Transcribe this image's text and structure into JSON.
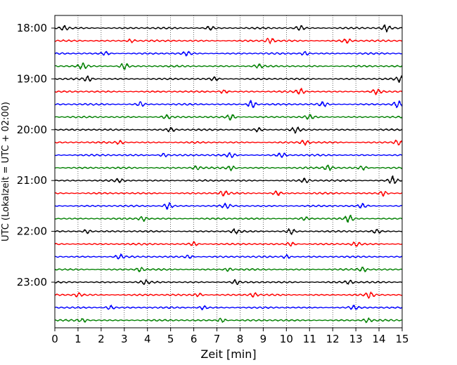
{
  "chart_data": {
    "type": "line",
    "title": "",
    "xlabel": "Zeit  [min]",
    "ylabel": "UTC (Lokalzeit = UTC + 02:00)",
    "xlim": [
      0,
      15
    ],
    "x_ticks": [
      "0",
      "1",
      "2",
      "3",
      "4",
      "5",
      "6",
      "7",
      "8",
      "9",
      "10",
      "11",
      "12",
      "13",
      "14",
      "15"
    ],
    "y_ticks": [
      "18:00",
      "19:00",
      "20:00",
      "21:00",
      "22:00",
      "23:00"
    ],
    "trace_interval_minutes": 15,
    "start_time": "18:00",
    "trace_count": 24,
    "colors": [
      "#000000",
      "#ff0000",
      "#0000ff",
      "#008000"
    ],
    "grid": "vertical dotted at each minute",
    "bursts": [
      [
        [
          0.4,
          1.0
        ],
        [
          6.7,
          0.9
        ],
        [
          10.6,
          1.2
        ],
        [
          14.3,
          1.6
        ]
      ],
      [
        [
          3.3,
          0.8
        ],
        [
          9.3,
          1.4
        ],
        [
          12.6,
          1.0
        ]
      ],
      [
        [
          2.2,
          0.8
        ],
        [
          5.7,
          0.8
        ],
        [
          10.8,
          0.9
        ]
      ],
      [
        [
          1.2,
          1.3
        ],
        [
          3.0,
          1.4
        ],
        [
          8.8,
          0.9
        ]
      ],
      [
        [
          1.4,
          1.3
        ],
        [
          6.9,
          0.8
        ],
        [
          14.9,
          1.3
        ]
      ],
      [
        [
          7.3,
          0.9
        ],
        [
          10.6,
          1.3
        ],
        [
          13.9,
          1.2
        ]
      ],
      [
        [
          3.7,
          1.0
        ],
        [
          8.5,
          1.7
        ],
        [
          11.6,
          1.0
        ],
        [
          14.8,
          1.5
        ]
      ],
      [
        [
          4.8,
          0.9
        ],
        [
          7.6,
          1.4
        ],
        [
          11.0,
          1.0
        ]
      ],
      [
        [
          5.0,
          1.0
        ],
        [
          8.8,
          0.9
        ],
        [
          10.4,
          1.2
        ]
      ],
      [
        [
          2.8,
          0.8
        ],
        [
          10.8,
          1.1
        ],
        [
          14.8,
          1.1
        ]
      ],
      [
        [
          4.7,
          0.9
        ],
        [
          7.6,
          1.1
        ],
        [
          9.8,
          1.1
        ]
      ],
      [
        [
          6.1,
          0.8
        ],
        [
          7.6,
          1.1
        ],
        [
          11.8,
          1.3
        ],
        [
          13.3,
          1.0
        ]
      ],
      [
        [
          2.8,
          0.8
        ],
        [
          10.8,
          1.0
        ],
        [
          14.6,
          1.9
        ]
      ],
      [
        [
          7.3,
          1.1
        ],
        [
          9.6,
          1.1
        ],
        [
          14.2,
          1.2
        ]
      ],
      [
        [
          4.9,
          1.6
        ],
        [
          7.4,
          0.9
        ],
        [
          13.3,
          1.1
        ]
      ],
      [
        [
          3.8,
          1.1
        ],
        [
          10.8,
          0.9
        ],
        [
          12.7,
          1.5
        ]
      ],
      [
        [
          1.4,
          1.0
        ],
        [
          7.8,
          1.0
        ],
        [
          10.2,
          1.3
        ],
        [
          13.9,
          1.0
        ]
      ],
      [
        [
          6.0,
          0.9
        ],
        [
          10.2,
          1.0
        ],
        [
          13.0,
          1.0
        ]
      ],
      [
        [
          2.8,
          1.1
        ],
        [
          5.8,
          0.9
        ],
        [
          10.0,
          1.0
        ]
      ],
      [
        [
          3.7,
          1.0
        ],
        [
          7.5,
          0.8
        ],
        [
          13.3,
          1.1
        ]
      ],
      [
        [
          3.9,
          0.9
        ],
        [
          7.8,
          0.9
        ],
        [
          12.7,
          1.0
        ]
      ],
      [
        [
          1.0,
          1.0
        ],
        [
          6.2,
          0.8
        ],
        [
          8.6,
          0.9
        ],
        [
          13.6,
          1.2
        ]
      ],
      [
        [
          2.4,
          1.0
        ],
        [
          6.4,
          0.9
        ],
        [
          12.9,
          0.9
        ]
      ],
      [
        [
          1.2,
          0.9
        ],
        [
          7.2,
          1.0
        ],
        [
          13.5,
          0.9
        ]
      ]
    ]
  }
}
